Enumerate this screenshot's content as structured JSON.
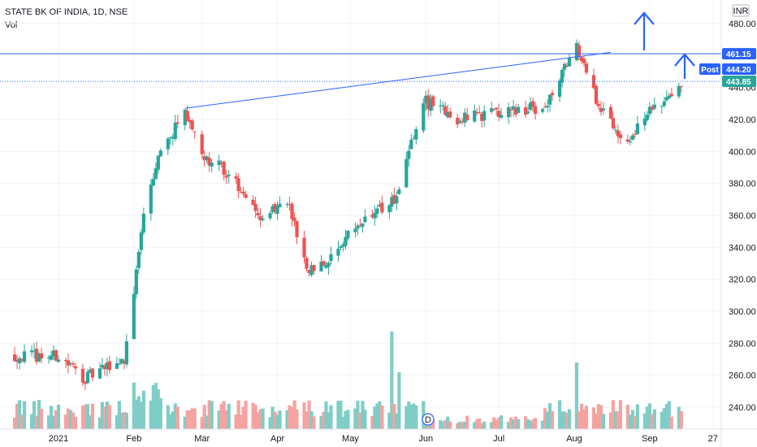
{
  "header": {
    "symbol_line": "STATE BK OF INDIA, 1D, NSE",
    "volume_label": "Vol",
    "currency": "INR"
  },
  "colors": {
    "up": "#26a69a",
    "down": "#ef5350",
    "up_vol": "#7fcdc6",
    "down_vol": "#f5a3a1",
    "line": "#2962ff"
  },
  "chart_data": {
    "type": "candlestick",
    "title": "STATE BK OF INDIA, 1D, NSE",
    "y_ticks": [
      240,
      260,
      280,
      300,
      320,
      340,
      360,
      380,
      400,
      420,
      440,
      460,
      480
    ],
    "ylim": [
      230,
      490
    ],
    "x_ticks": [
      "2021",
      "Feb",
      "Mar",
      "Apr",
      "May",
      "Jun",
      "Jul",
      "Aug",
      "Sep",
      "27"
    ],
    "price_tags": [
      {
        "label": "461.15",
        "value": 461.15,
        "style": "line"
      },
      {
        "label": "444.20",
        "value": 444.2,
        "style": "post",
        "prefix": "Post"
      },
      {
        "label": "443.85",
        "value": 443.85,
        "style": "last"
      }
    ],
    "dividend_marker": "D",
    "key_points": [
      {
        "date": "2021-01-01",
        "price": 272
      },
      {
        "date": "2021-01-12",
        "price": 258
      },
      {
        "date": "2021-01-28",
        "price": 270
      },
      {
        "date": "2021-02-05",
        "price": 358
      },
      {
        "date": "2021-02-10",
        "price": 392
      },
      {
        "date": "2021-02-22",
        "price": 427
      },
      {
        "date": "2021-03-01",
        "price": 398
      },
      {
        "date": "2021-03-12",
        "price": 386
      },
      {
        "date": "2021-03-25",
        "price": 360
      },
      {
        "date": "2021-04-05",
        "price": 368
      },
      {
        "date": "2021-04-13",
        "price": 327
      },
      {
        "date": "2021-04-22",
        "price": 330
      },
      {
        "date": "2021-05-04",
        "price": 355
      },
      {
        "date": "2021-05-20",
        "price": 370
      },
      {
        "date": "2021-05-31",
        "price": 432
      },
      {
        "date": "2021-06-15",
        "price": 420
      },
      {
        "date": "2021-07-01",
        "price": 425
      },
      {
        "date": "2021-07-20",
        "price": 428
      },
      {
        "date": "2021-08-02",
        "price": 465
      },
      {
        "date": "2021-08-10",
        "price": 432
      },
      {
        "date": "2021-08-23",
        "price": 405
      },
      {
        "date": "2021-09-01",
        "price": 425
      },
      {
        "date": "2021-09-14",
        "price": 444
      }
    ],
    "trendline": {
      "from": {
        "date": "2021-02-22",
        "price": 427
      },
      "to": {
        "date": "2021-08-16",
        "price": 462
      }
    }
  }
}
